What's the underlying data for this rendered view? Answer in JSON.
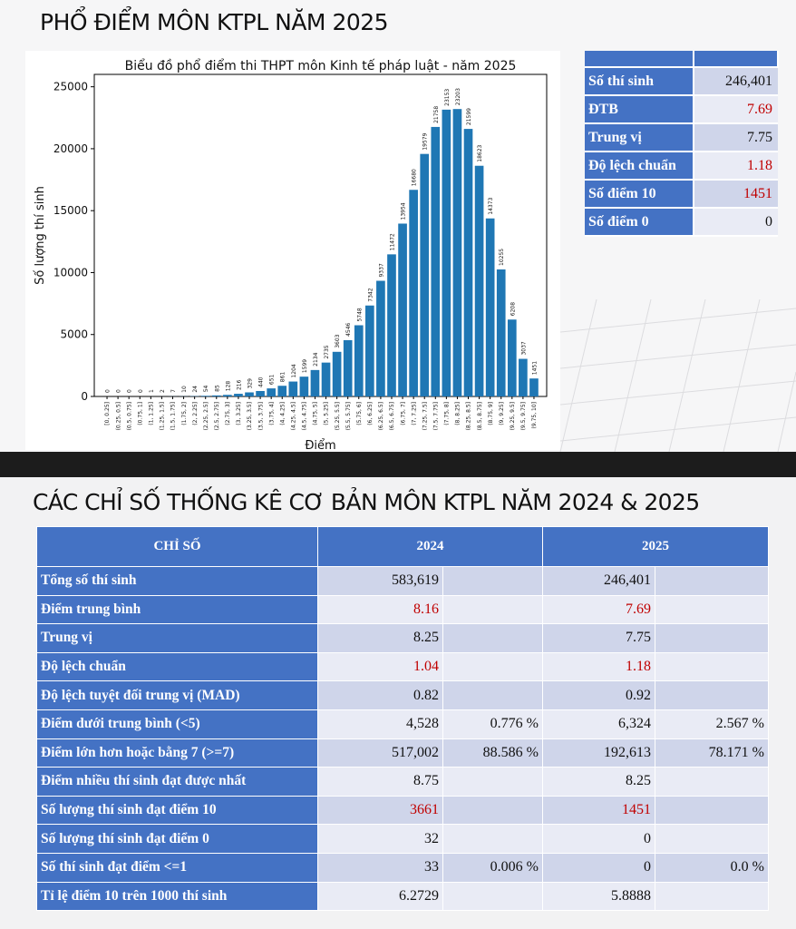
{
  "top_title": "PHỔ ĐIỂM MÔN KTPL NĂM 2025",
  "chart_data": {
    "type": "bar",
    "title": "Biểu đồ phổ điểm thi THPT môn Kinh tế pháp luật - năm 2025",
    "xlabel": "Điểm",
    "ylabel": "Số lượng thí sinh",
    "ylim": [
      0,
      26000
    ],
    "yticks": [
      0,
      5000,
      10000,
      15000,
      20000,
      25000
    ],
    "categories": [
      "[0, 0.25]",
      "(0.25, 0.5]",
      "(0.5, 0.75]",
      "(0.75, 1]",
      "(1, 1.25]",
      "(1.25, 1.5]",
      "(1.5, 1.75]",
      "(1.75, 2]",
      "(2, 2.25]",
      "(2.25, 2.5]",
      "(2.5, 2.75]",
      "(2.75, 3]",
      "(3, 3.25]",
      "(3.25, 3.5]",
      "(3.5, 3.75]",
      "(3.75, 4]",
      "(4, 4.25]",
      "(4.25, 4.5]",
      "(4.5, 4.75]",
      "(4.75, 5]",
      "(5, 5.25]",
      "(5.25, 5.5]",
      "(5.5, 5.75]",
      "(5.75, 6]",
      "(6, 6.25]",
      "(6.25, 6.5]",
      "(6.5, 6.75]",
      "(6.75, 7]",
      "(7, 7.25]",
      "(7.25, 7.5]",
      "(7.5, 7.75]",
      "(7.75, 8]",
      "(8, 8.25]",
      "(8.25, 8.5]",
      "(8.5, 8.75]",
      "(8.75, 9]",
      "(9, 9.25]",
      "(9.25, 9.5]",
      "(9.5, 9.75]",
      "(9.75, 10]"
    ],
    "values": [
      0,
      0,
      0,
      0,
      1,
      2,
      7,
      10,
      24,
      54,
      85,
      128,
      216,
      329,
      440,
      651,
      861,
      1204,
      1599,
      2134,
      2735,
      3603,
      4546,
      5748,
      7342,
      9337,
      11472,
      13954,
      16680,
      19579,
      21758,
      23153,
      23203,
      21599,
      18623,
      14373,
      10255,
      6208,
      3037,
      1451
    ],
    "bar_color": "#1f77b4"
  },
  "summary": {
    "rows": [
      {
        "label": "Số thí sinh",
        "value": "246,401",
        "color": "#111111"
      },
      {
        "label": "ĐTB",
        "value": "7.69",
        "color": "#c00000"
      },
      {
        "label": "Trung vị",
        "value": "7.75",
        "color": "#111111"
      },
      {
        "label": "Độ lệch chuẩn",
        "value": "1.18",
        "color": "#c00000"
      },
      {
        "label": "Số điểm 10",
        "value": "1451",
        "color": "#c00000"
      },
      {
        "label": "Số điểm 0",
        "value": "0",
        "color": "#111111"
      }
    ]
  },
  "bottom_title": "CÁC CHỈ SỐ THỐNG KÊ CƠ BẢN MÔN KTPL NĂM 2024 & 2025",
  "stats_table": {
    "headers": [
      "CHỈ SỐ",
      "2024",
      "2025"
    ],
    "rows": [
      {
        "label": "Tổng số thí sinh",
        "v2024": "583,619",
        "p2024": "",
        "v2025": "246,401",
        "p2025": "",
        "red": false
      },
      {
        "label": "Điểm trung bình",
        "v2024": "8.16",
        "p2024": "",
        "v2025": "7.69",
        "p2025": "",
        "red": true
      },
      {
        "label": "Trung vị",
        "v2024": "8.25",
        "p2024": "",
        "v2025": "7.75",
        "p2025": "",
        "red": false
      },
      {
        "label": "Độ lệch chuẩn",
        "v2024": "1.04",
        "p2024": "",
        "v2025": "1.18",
        "p2025": "",
        "red": true
      },
      {
        "label": "Độ lệch tuyệt đối trung vị (MAD)",
        "v2024": "0.82",
        "p2024": "",
        "v2025": "0.92",
        "p2025": "",
        "red": false
      },
      {
        "label": "Điểm dưới trung bình (<5)",
        "v2024": "4,528",
        "p2024": "0.776 %",
        "v2025": "6,324",
        "p2025": "2.567 %",
        "red": false
      },
      {
        "label": "Điểm lớn hơn hoặc bằng 7 (>=7)",
        "v2024": "517,002",
        "p2024": "88.586 %",
        "v2025": "192,613",
        "p2025": "78.171 %",
        "red": false
      },
      {
        "label": "Điểm nhiều thí sinh đạt được nhất",
        "v2024": "8.75",
        "p2024": "",
        "v2025": "8.25",
        "p2025": "",
        "red": false
      },
      {
        "label": "Số lượng thí sinh đạt điểm 10",
        "v2024": "3661",
        "p2024": "",
        "v2025": "1451",
        "p2025": "",
        "red": true
      },
      {
        "label": "Số lượng thí sinh đạt điểm 0",
        "v2024": "32",
        "p2024": "",
        "v2025": "0",
        "p2025": "",
        "red": false
      },
      {
        "label": "Số thí sinh đạt điểm <=1",
        "v2024": "33",
        "p2024": "0.006 %",
        "v2025": "0",
        "p2025": "0.0 %",
        "red": false
      },
      {
        "label": "Tỉ lệ điểm 10 trên 1000 thí sinh",
        "v2024": "6.2729",
        "p2024": "",
        "v2025": "5.8888",
        "p2025": "",
        "red": false
      }
    ]
  }
}
